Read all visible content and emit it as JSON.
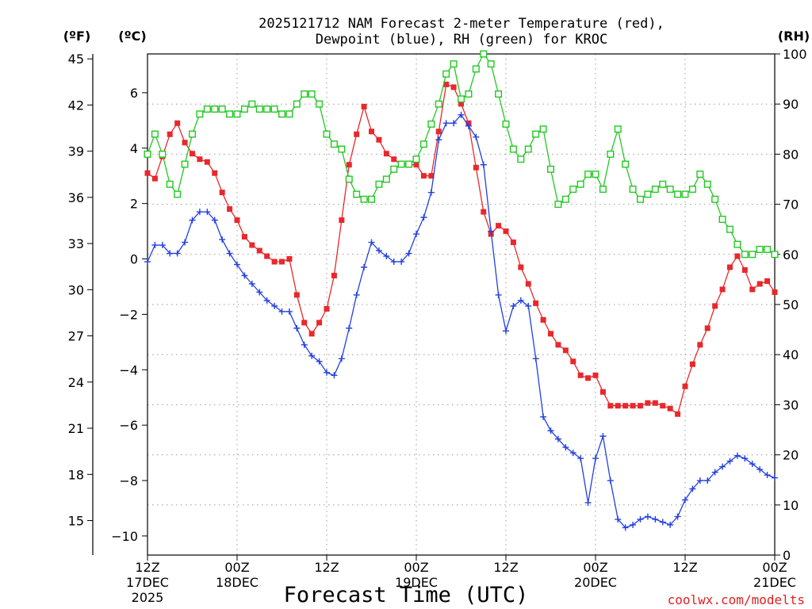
{
  "colors": {
    "temperature": "#e8282c",
    "dewpoint": "#2340e0",
    "rh": "#21c821",
    "credit": "#e02020"
  },
  "chart_data": {
    "type": "line",
    "title_line1": "2025121712 NAM Forecast 2-meter Temperature (red),",
    "title_line2": "Dewpoint (blue), RH (green) for KROC",
    "xlabel": "Forecast Time (UTC)",
    "credit": "coolwx.com/modelts",
    "unit_labels": {
      "fahrenheit": "(ºF)",
      "celsius": "(ºC)",
      "rh": "(RH)"
    },
    "x_forecast_hours_range": [
      0,
      84
    ],
    "celsius_range": [
      -10.69,
      7.4
    ],
    "rh_range": [
      0,
      100
    ],
    "x_ticks": [
      {
        "hour": 0,
        "line1": "12Z",
        "line2": "17DEC",
        "line3": "2025"
      },
      {
        "hour": 12,
        "line1": "00Z",
        "line2": "18DEC",
        "line3": ""
      },
      {
        "hour": 24,
        "line1": "12Z",
        "line2": "",
        "line3": ""
      },
      {
        "hour": 36,
        "line1": "00Z",
        "line2": "19DEC",
        "line3": ""
      },
      {
        "hour": 48,
        "line1": "12Z",
        "line2": "",
        "line3": ""
      },
      {
        "hour": 60,
        "line1": "00Z",
        "line2": "20DEC",
        "line3": ""
      },
      {
        "hour": 72,
        "line1": "12Z",
        "line2": "",
        "line3": ""
      },
      {
        "hour": 84,
        "line1": "00Z",
        "line2": "21DEC",
        "line3": ""
      }
    ],
    "fahrenheit_ticks": [
      45,
      42,
      39,
      36,
      33,
      30,
      27,
      24,
      21,
      18,
      15
    ],
    "celsius_ticks": [
      6,
      4,
      2,
      0,
      -2,
      -4,
      -6,
      -8,
      -10
    ],
    "celsius_tick_labels": [
      "6",
      "4",
      "2",
      "0",
      "−2",
      "−4",
      "−6",
      "−8",
      "−10"
    ],
    "rh_ticks": [
      100,
      90,
      80,
      70,
      60,
      50,
      40,
      30,
      20,
      10,
      0
    ],
    "series": [
      {
        "name": "2-meter Temperature (°C)",
        "axis": "celsius",
        "marker": "filled-square",
        "hours": [
          0,
          1,
          2,
          3,
          4,
          5,
          6,
          7,
          8,
          9,
          10,
          11,
          12,
          13,
          14,
          15,
          16,
          17,
          18,
          19,
          20,
          21,
          22,
          23,
          24,
          25,
          26,
          27,
          28,
          29,
          30,
          31,
          32,
          33,
          34,
          35,
          36,
          37,
          38,
          39,
          40,
          41,
          42,
          43,
          44,
          45,
          46,
          47,
          48,
          49,
          50,
          51,
          52,
          53,
          54,
          55,
          56,
          57,
          58,
          59,
          60,
          61,
          62,
          63,
          64,
          65,
          66,
          67,
          68,
          69,
          70,
          71,
          72,
          73,
          74,
          75,
          76,
          77,
          78,
          79,
          80,
          81,
          82,
          83,
          84
        ],
        "values": [
          3.1,
          2.9,
          3.7,
          4.5,
          4.9,
          4.2,
          3.8,
          3.6,
          3.5,
          3.1,
          2.4,
          1.8,
          1.4,
          0.8,
          0.5,
          0.3,
          0.1,
          -0.1,
          -0.1,
          0.0,
          -1.3,
          -2.3,
          -2.7,
          -2.3,
          -1.8,
          -0.6,
          1.4,
          3.4,
          4.5,
          5.5,
          4.6,
          4.3,
          3.8,
          3.6,
          3.4,
          3.4,
          3.4,
          3.0,
          3.0,
          4.6,
          6.3,
          6.2,
          5.6,
          4.9,
          3.3,
          1.7,
          0.9,
          1.2,
          1.0,
          0.6,
          -0.3,
          -0.9,
          -1.6,
          -2.2,
          -2.7,
          -3.1,
          -3.3,
          -3.7,
          -4.2,
          -4.3,
          -4.2,
          -4.8,
          -5.3,
          -5.3,
          -5.3,
          -5.3,
          -5.3,
          -5.2,
          -5.2,
          -5.3,
          -5.4,
          -5.6,
          -4.6,
          -3.8,
          -3.1,
          -2.5,
          -1.7,
          -1.1,
          -0.3,
          0.1,
          -0.4,
          -1.1,
          -0.9,
          -0.8,
          -1.2
        ]
      },
      {
        "name": "Dewpoint (°C)",
        "axis": "celsius",
        "marker": "plus",
        "hours": [
          0,
          1,
          2,
          3,
          4,
          5,
          6,
          7,
          8,
          9,
          10,
          11,
          12,
          13,
          14,
          15,
          16,
          17,
          18,
          19,
          20,
          21,
          22,
          23,
          24,
          25,
          26,
          27,
          28,
          29,
          30,
          31,
          32,
          33,
          34,
          35,
          36,
          37,
          38,
          39,
          40,
          41,
          42,
          43,
          44,
          45,
          46,
          47,
          48,
          49,
          50,
          51,
          52,
          53,
          54,
          55,
          56,
          57,
          58,
          59,
          60,
          61,
          62,
          63,
          64,
          65,
          66,
          67,
          68,
          69,
          70,
          71,
          72,
          73,
          74,
          75,
          76,
          77,
          78,
          79,
          80,
          81,
          82,
          83,
          84
        ],
        "values": [
          -0.1,
          0.5,
          0.5,
          0.2,
          0.2,
          0.6,
          1.4,
          1.7,
          1.7,
          1.4,
          0.7,
          0.2,
          -0.2,
          -0.6,
          -0.9,
          -1.2,
          -1.5,
          -1.7,
          -1.9,
          -1.9,
          -2.5,
          -3.1,
          -3.5,
          -3.7,
          -4.1,
          -4.2,
          -3.6,
          -2.5,
          -1.3,
          -0.3,
          0.6,
          0.3,
          0.1,
          -0.1,
          -0.1,
          0.2,
          0.9,
          1.5,
          2.4,
          4.3,
          4.9,
          4.9,
          5.2,
          4.8,
          4.4,
          3.4,
          1.0,
          -1.3,
          -2.6,
          -1.7,
          -1.5,
          -1.7,
          -3.6,
          -5.7,
          -6.2,
          -6.5,
          -6.8,
          -7.0,
          -7.2,
          -8.8,
          -7.2,
          -6.4,
          -8.0,
          -9.4,
          -9.7,
          -9.6,
          -9.4,
          -9.3,
          -9.4,
          -9.5,
          -9.6,
          -9.3,
          -8.7,
          -8.3,
          -8.0,
          -8.0,
          -7.7,
          -7.5,
          -7.3,
          -7.1,
          -7.2,
          -7.4,
          -7.6,
          -7.8,
          -7.9
        ]
      },
      {
        "name": "Relative Humidity (%)",
        "axis": "rh",
        "marker": "open-square",
        "hours": [
          0,
          1,
          2,
          3,
          4,
          5,
          6,
          7,
          8,
          9,
          10,
          11,
          12,
          13,
          14,
          15,
          16,
          17,
          18,
          19,
          20,
          21,
          22,
          23,
          24,
          25,
          26,
          27,
          28,
          29,
          30,
          31,
          32,
          33,
          34,
          35,
          36,
          37,
          38,
          39,
          40,
          41,
          42,
          43,
          44,
          45,
          46,
          47,
          48,
          49,
          50,
          51,
          52,
          53,
          54,
          55,
          56,
          57,
          58,
          59,
          60,
          61,
          62,
          63,
          64,
          65,
          66,
          67,
          68,
          69,
          70,
          71,
          72,
          73,
          74,
          75,
          76,
          77,
          78,
          79,
          80,
          81,
          82,
          83,
          84
        ],
        "values": [
          80,
          84,
          80,
          74,
          72,
          78,
          84,
          88,
          89,
          89,
          89,
          88,
          88,
          89,
          90,
          89,
          89,
          89,
          88,
          88,
          90,
          92,
          92,
          90,
          84,
          82,
          81,
          75,
          72,
          71,
          71,
          74,
          75,
          77,
          78,
          78,
          79,
          82,
          86,
          90,
          96,
          98,
          91,
          92,
          97,
          100,
          98,
          92,
          86,
          81,
          79,
          81,
          84,
          85,
          77,
          70,
          71,
          73,
          74,
          76,
          76,
          73,
          80,
          85,
          78,
          73,
          71,
          72,
          73,
          74,
          73,
          72,
          72,
          73,
          76,
          74,
          71,
          67,
          65,
          62,
          60,
          60,
          61,
          61,
          60
        ]
      }
    ]
  }
}
